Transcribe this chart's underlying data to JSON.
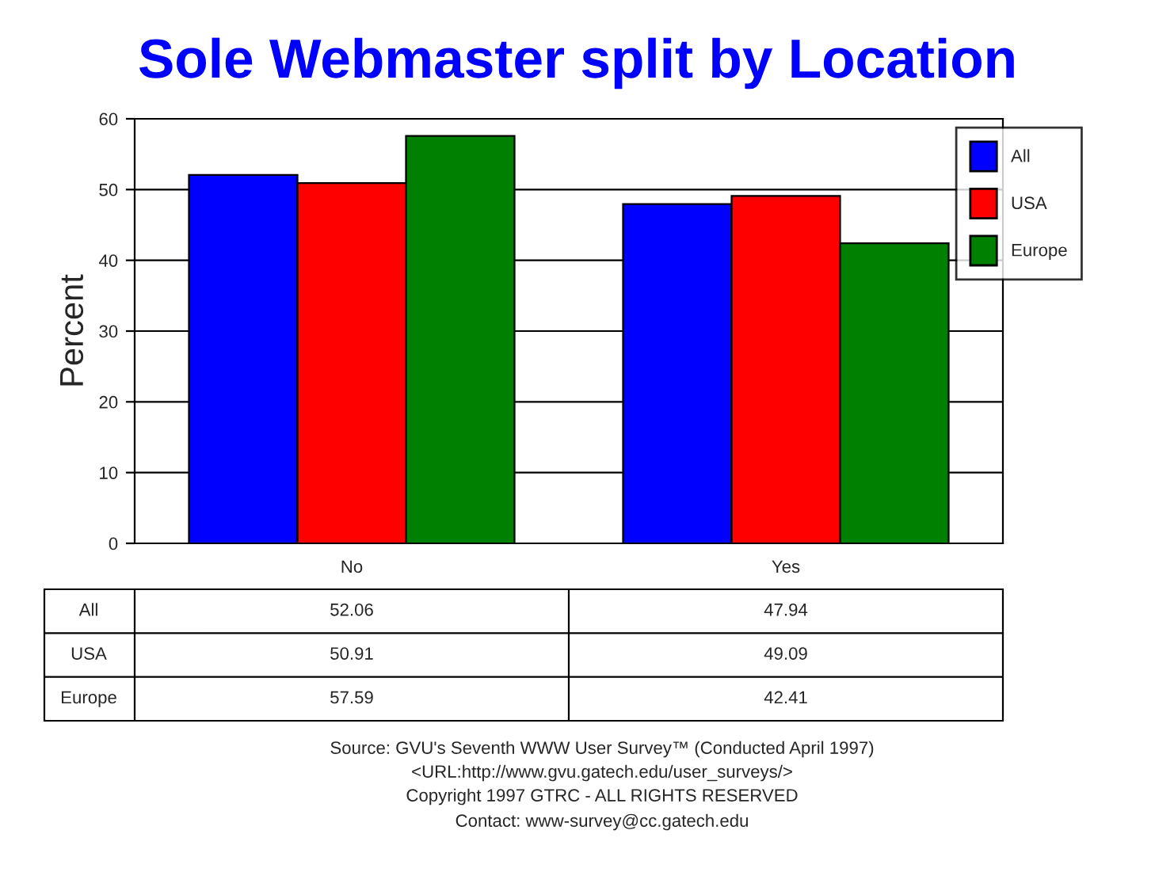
{
  "chart_data": {
    "type": "bar",
    "title": "Sole Webmaster split by Location",
    "ylabel": "Percent",
    "categories": [
      "No",
      "Yes"
    ],
    "series": [
      {
        "name": "All",
        "color": "#0000ff",
        "values": [
          52.06,
          47.94
        ]
      },
      {
        "name": "USA",
        "color": "#ff0000",
        "values": [
          50.91,
          49.09
        ]
      },
      {
        "name": "Europe",
        "color": "#008000",
        "values": [
          57.59,
          42.41
        ]
      }
    ],
    "ylim": [
      0,
      60
    ],
    "yticks": [
      0,
      10,
      20,
      30,
      40,
      50,
      60
    ],
    "grid": "y",
    "legend": "top right",
    "data_labels": true,
    "annotations": [
      "Source: GVU's Seventh WWW User Survey™ (Conducted April 1997)",
      "<URL:http://www.gvu.gatech.edu/user_surveys/>",
      "Copyright 1997 GTRC - ALL RIGHTS RESERVED",
      "Contact: www-survey@cc.gatech.edu"
    ]
  }
}
